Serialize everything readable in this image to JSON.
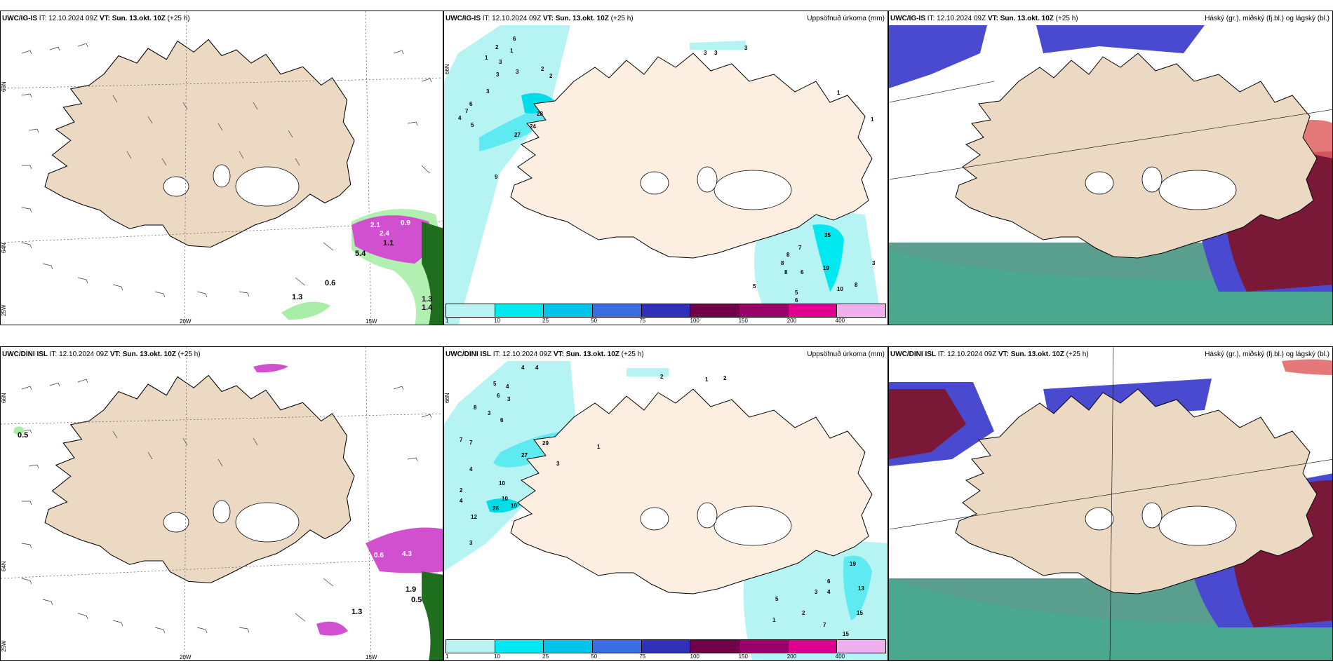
{
  "rows": [
    {
      "model": "UWC/IG-IS",
      "it_prefix": "IT:",
      "it": "12.10.2024 09Z",
      "vt_prefix": "VT:",
      "vt": "Sun. 13.okt. 10Z",
      "lead": "(+25 h)",
      "wind_labels": [
        "2.1",
        "2.4",
        "0.9",
        "1.1",
        "5.4",
        "0.6",
        "1.3",
        "1.4",
        "1.3"
      ],
      "precip_labels": [
        "2",
        "6",
        "1",
        "3",
        "2",
        "3",
        "1",
        "3",
        "2",
        "3",
        "6",
        "7",
        "4",
        "5",
        "28",
        "24",
        "27",
        "9",
        "3",
        "3",
        "3",
        "1",
        "1",
        "35",
        "7",
        "8",
        "8",
        "8",
        "6",
        "19",
        "5",
        "5",
        "10",
        "8",
        "3",
        "6"
      ]
    },
    {
      "model": "UWC/DINI ISL",
      "it_prefix": "IT:",
      "it": "12.10.2024 09Z",
      "vt_prefix": "VT:",
      "vt": "Sun. 13.okt. 10Z",
      "lead": "(+25 h)",
      "wind_labels": [
        "0.5",
        "0.6",
        "4.3",
        "1.9",
        "0.5",
        "1.3"
      ],
      "precip_labels": [
        "4",
        "4",
        "5",
        "4",
        "6",
        "3",
        "8",
        "3",
        "6",
        "7",
        "7",
        "4",
        "2",
        "4",
        "12",
        "3",
        "10",
        "10",
        "26",
        "10",
        "27",
        "29",
        "3",
        "1",
        "2",
        "1",
        "2",
        "19",
        "6",
        "4",
        "3",
        "13",
        "5",
        "2",
        "7",
        "15",
        "15",
        "1"
      ]
    }
  ],
  "precip_title": "Uppsöfnuð úrkoma (mm)",
  "cloud_title": "Háský (gr.), miðský (fj.bl.) og lágský (bl.)",
  "coords": {
    "lat_top_a": "66N",
    "lat_mid_a": "64N",
    "lat_top_b": "66N",
    "lat_mid_b": "64N",
    "precip_lat": "66N",
    "lon_20": "20W",
    "lon_15": "15W",
    "lon_25": "25W"
  },
  "colorbar": {
    "ticks": [
      "1",
      "10",
      "25",
      "50",
      "75",
      "100",
      "150",
      "200",
      "400"
    ],
    "colors": [
      "#b8f4f4",
      "#00e8f0",
      "#00c4e8",
      "#3a6ee0",
      "#3030b8",
      "#70004a",
      "#98006a",
      "#e00090",
      "#f0b0f0"
    ]
  },
  "colors": {
    "land": "#ecd9c4",
    "land_light": "#fcefe2",
    "precip_light": "#b6f4f4",
    "precip_mid": "#5eeaf0",
    "high_cloud": "#5a9e8e",
    "mid_cloud": "#4a4ad0",
    "low_cloud": "#7a1838",
    "precip_magenta": "#d050d0",
    "precip_green": "#3ec43e"
  }
}
